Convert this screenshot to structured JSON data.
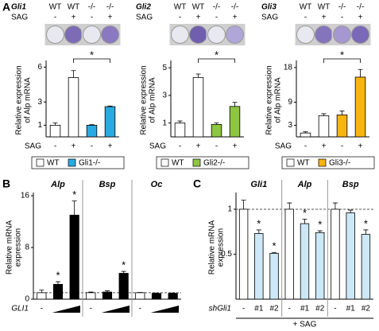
{
  "chart_data": [
    {
      "type": "bar",
      "panel": "A",
      "gene": "Gli1",
      "genotype_row": [
        "WT",
        "WT",
        "-/-",
        "-/-"
      ],
      "sag_label": "SAG",
      "sag_row": [
        "-",
        "+",
        "-",
        "+"
      ],
      "ylabel": [
        "Relative expression",
        "of Alp mRNA"
      ],
      "categories": [
        "-",
        "+",
        "-",
        "+"
      ],
      "x_axis_label": "SAG",
      "values": [
        1.0,
        5.1,
        1.0,
        2.6
      ],
      "errors": [
        0.2,
        0.6,
        0.05,
        0.05
      ],
      "colors": [
        "#ffffff",
        "#ffffff",
        "#29abe2",
        "#29abe2"
      ],
      "ylim": [
        0,
        6.3
      ],
      "yticks": [
        1,
        3,
        6
      ],
      "annotation": "*",
      "legend": [
        {
          "name": "WT",
          "color": "#ffffff"
        },
        {
          "name": "Gli1-/-",
          "color": "#29abe2"
        }
      ]
    },
    {
      "type": "bar",
      "gene": "Gli2",
      "genotype_row": [
        "WT",
        "WT",
        "-/-",
        "-/-"
      ],
      "sag_label": "SAG",
      "sag_row": [
        "-",
        "+",
        "-",
        "+"
      ],
      "ylabel": [
        "Relative expression",
        "of Alp mRNA"
      ],
      "categories": [
        "-",
        "+",
        "-",
        "+"
      ],
      "x_axis_label": "SAG",
      "values": [
        1.0,
        4.3,
        0.9,
        2.2
      ],
      "errors": [
        0.15,
        0.25,
        0.1,
        0.3
      ],
      "colors": [
        "#ffffff",
        "#ffffff",
        "#8dc63f",
        "#8dc63f"
      ],
      "ylim": [
        0,
        5.3
      ],
      "yticks": [
        1,
        3,
        5
      ],
      "annotation": "*",
      "legend": [
        {
          "name": "WT",
          "color": "#ffffff"
        },
        {
          "name": "Gli2-/-",
          "color": "#8dc63f"
        }
      ]
    },
    {
      "type": "bar",
      "gene": "Gli3",
      "genotype_row": [
        "WT",
        "WT",
        "-/-",
        "-/-"
      ],
      "sag_label": "SAG",
      "sag_row": [
        "-",
        "+",
        "-",
        "+"
      ],
      "ylabel": [
        "Relative expression",
        "of Alp mRNA"
      ],
      "categories": [
        "-",
        "+",
        "-",
        "+"
      ],
      "x_axis_label": "SAG",
      "values": [
        1.0,
        5.5,
        5.7,
        15.5
      ],
      "errors": [
        0.3,
        0.5,
        1.0,
        2.0
      ],
      "colors": [
        "#ffffff",
        "#ffffff",
        "#f9b410",
        "#f9b410"
      ],
      "ylim": [
        0,
        19
      ],
      "yticks": [
        3,
        9,
        18
      ],
      "annotation": "*",
      "legend": [
        {
          "name": "WT",
          "color": "#ffffff"
        },
        {
          "name": "Gli3-/-",
          "color": "#f9b410"
        }
      ]
    },
    {
      "type": "grouped-bar",
      "panel": "B",
      "ylabel": [
        "Relative mRNA",
        "expression"
      ],
      "x_axis_label": "GLI1",
      "categories": [
        "-",
        null,
        null
      ],
      "colors": [
        "#ffffff",
        "#000000",
        "#000000"
      ],
      "groups": [
        {
          "name": "Alp",
          "values": [
            1.0,
            2.3,
            13.0
          ],
          "errors": [
            0.4,
            0.4,
            2.2
          ],
          "markers": [
            null,
            "*",
            "*"
          ]
        },
        {
          "name": "Bsp",
          "values": [
            1.0,
            1.1,
            4.0
          ],
          "errors": [
            0.1,
            0.2,
            0.3
          ],
          "markers": [
            null,
            null,
            "*"
          ]
        },
        {
          "name": "Oc",
          "values": [
            1.0,
            0.9,
            0.9
          ],
          "errors": [
            0.05,
            0.05,
            0.05
          ],
          "markers": [
            null,
            null,
            null
          ]
        }
      ],
      "ylim": [
        0,
        16
      ],
      "yticks": [
        0,
        8,
        16
      ],
      "reference_line": 1
    },
    {
      "type": "grouped-bar",
      "panel": "C",
      "ylabel": [
        "Relative mRNA",
        "expression"
      ],
      "x_axis_label": "shGli1",
      "footer": "+ SAG",
      "categories": [
        "-",
        "#1",
        "#2"
      ],
      "colors": [
        "#ffffff",
        "#cce8f6",
        "#cce8f6"
      ],
      "groups": [
        {
          "name": "Gli1",
          "values": [
            1.0,
            0.73,
            0.51
          ],
          "errors": [
            0.1,
            0.04,
            0.01
          ],
          "markers": [
            null,
            "*",
            "*"
          ]
        },
        {
          "name": "Alp",
          "values": [
            1.0,
            0.84,
            0.74
          ],
          "errors": [
            0.07,
            0.05,
            0.02
          ],
          "markers": [
            null,
            "*",
            "*"
          ]
        },
        {
          "name": "Bsp",
          "values": [
            1.0,
            0.96,
            0.72
          ],
          "errors": [
            0.07,
            0.03,
            0.05
          ],
          "markers": [
            null,
            null,
            "*"
          ]
        }
      ],
      "ylim": [
        0,
        1.15
      ],
      "yticks": [
        0.5,
        1
      ],
      "reference_line": 1
    }
  ]
}
